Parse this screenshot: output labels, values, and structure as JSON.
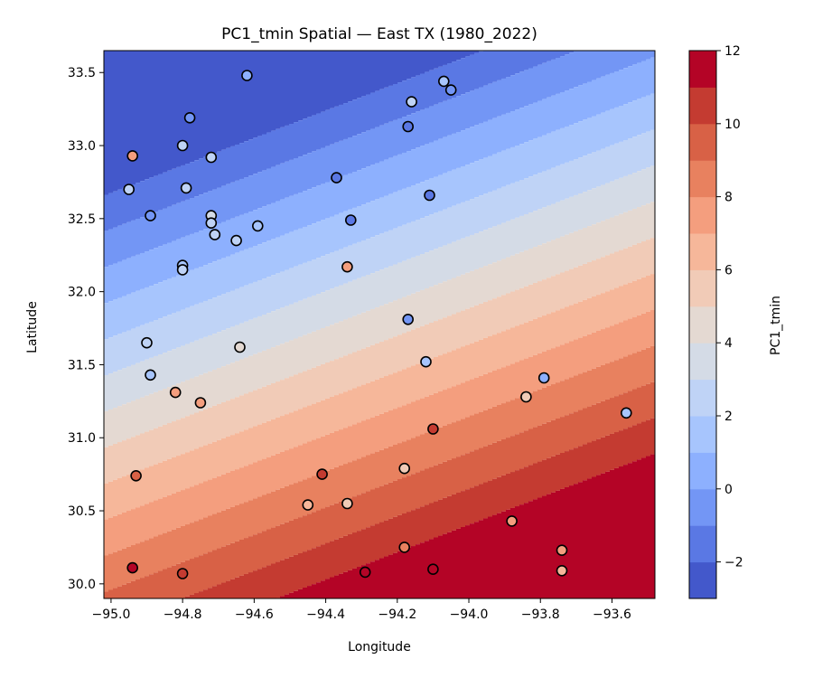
{
  "chart_data": {
    "type": "contour-scatter",
    "title": "PC1_tmin Spatial — East TX (1980_2022)",
    "xlabel": "Longitude",
    "ylabel": "Latitude",
    "xlim": [
      -95.02,
      -93.48
    ],
    "ylim": [
      29.9,
      33.65
    ],
    "xticks": [
      -95.0,
      -94.8,
      -94.6,
      -94.4,
      -94.2,
      -94.0,
      -93.8,
      -93.6
    ],
    "xtick_labels": [
      "−95.0",
      "−94.8",
      "−94.6",
      "−94.4",
      "−94.2",
      "−94.0",
      "−93.8",
      "−93.6"
    ],
    "yticks": [
      30.0,
      30.5,
      31.0,
      31.5,
      32.0,
      32.5,
      33.0,
      33.5
    ],
    "ytick_labels": [
      "30.0",
      "30.5",
      "31.0",
      "31.5",
      "32.0",
      "32.5",
      "33.0",
      "33.5"
    ],
    "colorbar": {
      "label": "PC1_tmin",
      "min": -3,
      "max": 12,
      "ticks": [
        -2,
        0,
        2,
        4,
        6,
        8,
        10,
        12
      ],
      "tick_labels": [
        "−2",
        "0",
        "2",
        "4",
        "6",
        "8",
        "10",
        "12"
      ],
      "levels": [
        -3,
        -2,
        -1,
        0,
        1,
        2,
        3,
        4,
        5,
        6,
        7,
        8,
        9,
        10,
        11,
        12
      ],
      "band_colors": [
        "#4358cb",
        "#5a78e4",
        "#7396f5",
        "#8db0fe",
        "#a7c5fd",
        "#bfd3f6",
        "#d4dbe6",
        "#e4d9d2",
        "#f1cbb7",
        "#f6b79a",
        "#f49e7e",
        "#e8815f",
        "#d86146",
        "#c43b31",
        "#b40426"
      ]
    },
    "contour_field_note": "",
    "points": [
      {
        "lon": -94.62,
        "lat": 33.48,
        "value": 0.8
      },
      {
        "lon": -94.07,
        "lat": 33.44,
        "value": 1.5
      },
      {
        "lon": -94.05,
        "lat": 33.38,
        "value": -1.0
      },
      {
        "lon": -94.16,
        "lat": 33.3,
        "value": 2.5
      },
      {
        "lon": -94.78,
        "lat": 33.19,
        "value": -0.5
      },
      {
        "lon": -94.17,
        "lat": 33.13,
        "value": -1.8
      },
      {
        "lon": -94.8,
        "lat": 33.0,
        "value": 2.8
      },
      {
        "lon": -94.94,
        "lat": 32.93,
        "value": 7.3
      },
      {
        "lon": -94.72,
        "lat": 32.92,
        "value": 2.5
      },
      {
        "lon": -94.37,
        "lat": 32.78,
        "value": -1.3
      },
      {
        "lon": -94.95,
        "lat": 32.7,
        "value": 2.6
      },
      {
        "lon": -94.79,
        "lat": 32.71,
        "value": 2.4
      },
      {
        "lon": -94.11,
        "lat": 32.66,
        "value": -1.8
      },
      {
        "lon": -94.89,
        "lat": 32.52,
        "value": -1.0
      },
      {
        "lon": -94.72,
        "lat": 32.52,
        "value": 3.2
      },
      {
        "lon": -94.72,
        "lat": 32.47,
        "value": 2.0
      },
      {
        "lon": -94.33,
        "lat": 32.49,
        "value": -1.7
      },
      {
        "lon": -94.59,
        "lat": 32.45,
        "value": 1.9
      },
      {
        "lon": -94.71,
        "lat": 32.39,
        "value": 2.4
      },
      {
        "lon": -94.65,
        "lat": 32.35,
        "value": 2.7
      },
      {
        "lon": -94.8,
        "lat": 32.18,
        "value": 1.8
      },
      {
        "lon": -94.8,
        "lat": 32.15,
        "value": 2.6
      },
      {
        "lon": -94.34,
        "lat": 32.17,
        "value": 7.0
      },
      {
        "lon": -94.17,
        "lat": 31.81,
        "value": -0.6
      },
      {
        "lon": -94.9,
        "lat": 31.65,
        "value": 2.2
      },
      {
        "lon": -94.64,
        "lat": 31.62,
        "value": 4.2
      },
      {
        "lon": -94.12,
        "lat": 31.52,
        "value": 1.8
      },
      {
        "lon": -94.89,
        "lat": 31.43,
        "value": 1.6
      },
      {
        "lon": -93.79,
        "lat": 31.41,
        "value": 0.8
      },
      {
        "lon": -94.82,
        "lat": 31.31,
        "value": 7.8
      },
      {
        "lon": -93.84,
        "lat": 31.28,
        "value": 5.8
      },
      {
        "lon": -94.75,
        "lat": 31.24,
        "value": 7.4
      },
      {
        "lon": -93.56,
        "lat": 31.17,
        "value": 1.4
      },
      {
        "lon": -94.1,
        "lat": 31.06,
        "value": 10.0
      },
      {
        "lon": -94.18,
        "lat": 30.79,
        "value": 5.0
      },
      {
        "lon": -94.93,
        "lat": 30.74,
        "value": 9.8
      },
      {
        "lon": -94.41,
        "lat": 30.75,
        "value": 10.6
      },
      {
        "lon": -94.45,
        "lat": 30.54,
        "value": 6.5
      },
      {
        "lon": -94.34,
        "lat": 30.55,
        "value": 5.3
      },
      {
        "lon": -93.88,
        "lat": 30.43,
        "value": 7.8
      },
      {
        "lon": -94.18,
        "lat": 30.25,
        "value": 8.5
      },
      {
        "lon": -93.74,
        "lat": 30.23,
        "value": 7.6
      },
      {
        "lon": -94.94,
        "lat": 30.11,
        "value": 11.8
      },
      {
        "lon": -94.1,
        "lat": 30.1,
        "value": 11.8
      },
      {
        "lon": -94.8,
        "lat": 30.07,
        "value": 10.8
      },
      {
        "lon": -94.29,
        "lat": 30.08,
        "value": 11.8
      },
      {
        "lon": -93.74,
        "lat": 30.09,
        "value": 6.2
      }
    ]
  }
}
